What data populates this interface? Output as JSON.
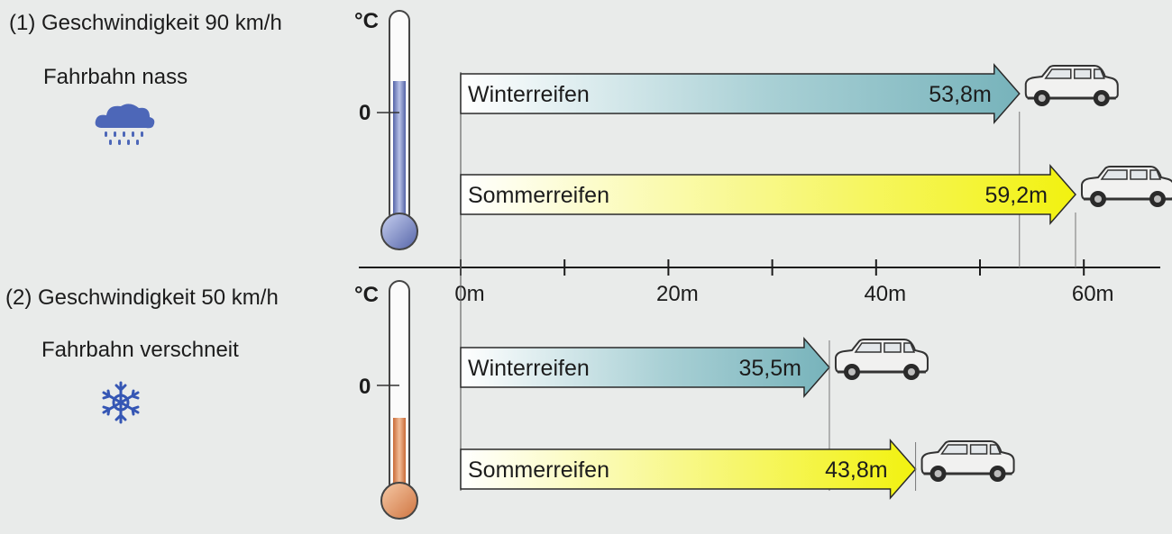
{
  "scenarios": [
    {
      "heading": "(1) Geschwindigkeit 90 km/h",
      "road": "Fahrbahn nass",
      "weather_icon": "rain-cloud-icon",
      "thermometer": {
        "unit": "°C",
        "zero_label": "0",
        "fill_color": "#6f7fb6",
        "level": "above-zero"
      }
    },
    {
      "heading": "(2) Geschwindigkeit 50 km/h",
      "road": "Fahrbahn verschneit",
      "weather_icon": "snowflake-icon",
      "thermometer": {
        "unit": "°C",
        "zero_label": "0",
        "fill_color": "#d9895a",
        "level": "below-zero"
      }
    }
  ],
  "chart_data": {
    "type": "bar",
    "orientation": "horizontal",
    "x_unit": "m",
    "xlim": [
      0,
      67
    ],
    "tick_step": 10,
    "tick_labels": [
      {
        "value": 0,
        "label": "0m"
      },
      {
        "value": 20,
        "label": "20m"
      },
      {
        "value": 40,
        "label": "40m"
      },
      {
        "value": 60,
        "label": "60m"
      }
    ],
    "groups": [
      {
        "bars": [
          {
            "label": "Winterreifen",
            "value": 53.8,
            "value_label": "53,8m",
            "color": "#77b3bb"
          },
          {
            "label": "Sommerreifen",
            "value": 59.2,
            "value_label": "59,2m",
            "color": "#f3f316"
          }
        ]
      },
      {
        "bars": [
          {
            "label": "Winterreifen",
            "value": 35.5,
            "value_label": "35,5m",
            "color": "#77b3bb"
          },
          {
            "label": "Sommerreifen",
            "value": 43.8,
            "value_label": "43,8m",
            "color": "#f3f316"
          }
        ]
      }
    ],
    "bar_end_icon": "car-icon"
  }
}
